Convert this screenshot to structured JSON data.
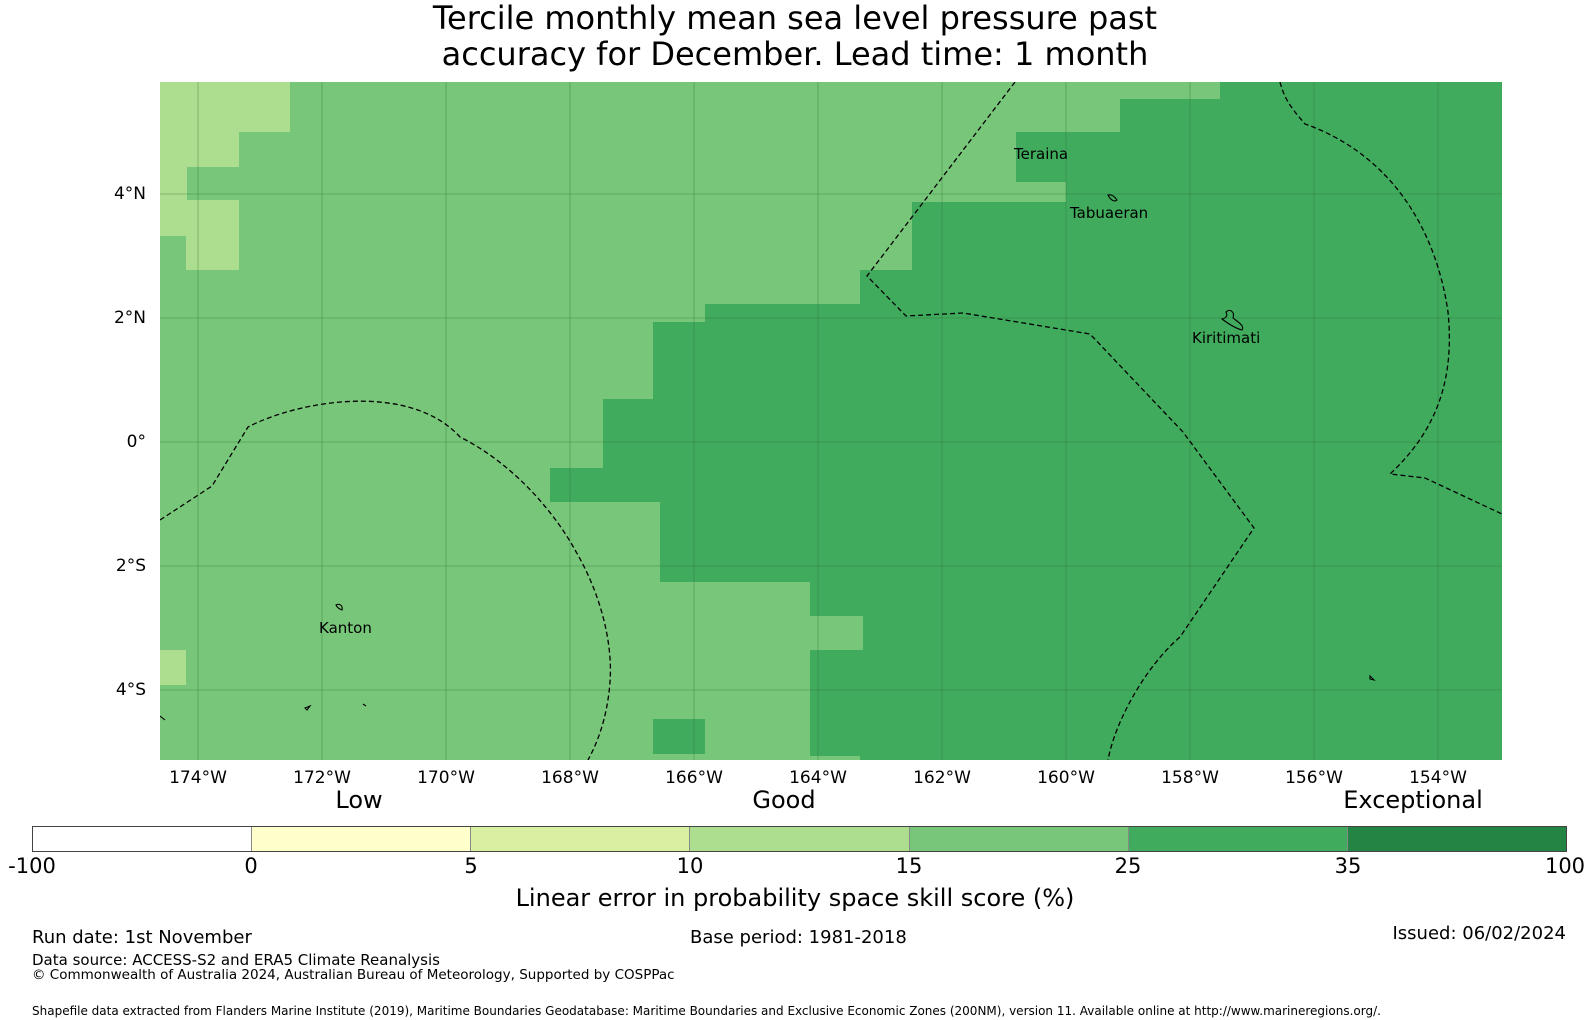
{
  "title": {
    "line1": "Tercile monthly mean sea level pressure past",
    "line2": "accuracy for December. Lead time: 1 month"
  },
  "map": {
    "lon_ticks": [
      "174°W",
      "172°W",
      "170°W",
      "168°W",
      "166°W",
      "164°W",
      "162°W",
      "160°W",
      "158°W",
      "156°W",
      "154°W"
    ],
    "lon_values": [
      -174,
      -172,
      -170,
      -168,
      -166,
      -164,
      -162,
      -160,
      -158,
      -156,
      -154
    ],
    "lat_ticks": [
      "4°N",
      "2°N",
      "0°",
      "2°S",
      "4°S"
    ],
    "lat_values": [
      4,
      2,
      0,
      -2,
      -4
    ],
    "places": [
      "Teraina",
      "Tabuaeran",
      "Kiritimati",
      "Kanton"
    ]
  },
  "colorbar": {
    "category_labels": [
      "Low",
      "Good",
      "Exceptional"
    ],
    "tick_labels": [
      "-100",
      "0",
      "5",
      "10",
      "15",
      "25",
      "35",
      "100"
    ],
    "colors": [
      "#ffffff",
      "#ffffcc",
      "#d9f0a3",
      "#addd8e",
      "#78c679",
      "#41ab5d",
      "#238443"
    ],
    "label": "Linear error in probability space skill score (%)"
  },
  "footer": {
    "run_date": "Run date: 1st November",
    "base_period": "Base period: 1981-2018",
    "issued": "Issued: 06/02/2024",
    "data_source": "Data source: ACCESS-S2 and ERA5 Climate Reanalysis",
    "copyright": "© Commonwealth of Australia 2024, Australian Bureau of Meteorology, Supported by COSPPac",
    "shapefile": "Shapefile data extracted from Flanders Marine Institute (2019), Maritime Boundaries Geodatabase: Maritime Boundaries and Exclusive Economic Zones (200NM), version 11. Available online at http://www.marineregions.org/."
  }
}
